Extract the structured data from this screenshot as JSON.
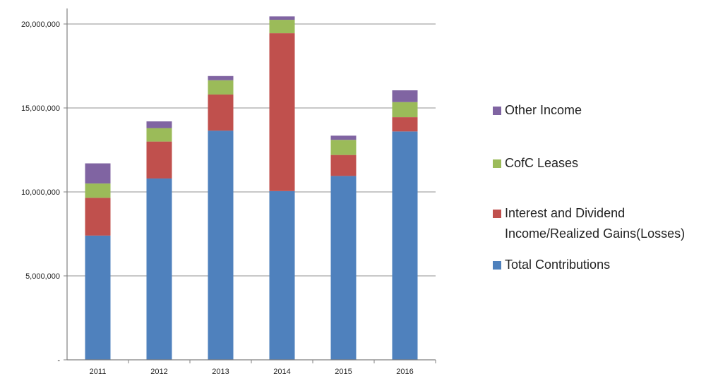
{
  "chart_data": {
    "type": "bar",
    "stacked": true,
    "categories": [
      "2011",
      "2012",
      "2013",
      "2014",
      "2015",
      "2016"
    ],
    "series": [
      {
        "name": "Total Contributions",
        "color": "#4f81bd",
        "values": [
          7400000,
          10800000,
          13650000,
          10050000,
          10950000,
          13600000
        ]
      },
      {
        "name": "Interest and Dividend Income/Realized Gains(Losses)",
        "color": "#c0504d",
        "values": [
          2250000,
          2200000,
          2150000,
          9400000,
          1250000,
          850000
        ]
      },
      {
        "name": "CofC Leases",
        "color": "#9bbb59",
        "values": [
          850000,
          800000,
          850000,
          800000,
          900000,
          900000
        ]
      },
      {
        "name": "Other Income",
        "color": "#8064a2",
        "values": [
          1200000,
          400000,
          250000,
          200000,
          250000,
          700000
        ]
      }
    ],
    "ylim": [
      0,
      21000000
    ],
    "yticks": [
      0,
      5000000,
      10000000,
      15000000,
      20000000
    ],
    "ytick_labels": [
      "-",
      "5,000,000",
      "10,000,000",
      "15,000,000",
      "20,000,000"
    ],
    "grid": true,
    "legend": {
      "position": "right",
      "entries": [
        {
          "label_lines": [
            "Other Income"
          ],
          "color": "#8064a2"
        },
        {
          "label_lines": [
            "CofC Leases"
          ],
          "color": "#9bbb59"
        },
        {
          "label_lines": [
            "Interest and Dividend",
            "Income/Realized Gains(Losses)"
          ],
          "color": "#c0504d"
        },
        {
          "label_lines": [
            "Total Contributions"
          ],
          "color": "#4f81bd"
        }
      ]
    },
    "title": "",
    "xlabel": "",
    "ylabel": ""
  }
}
